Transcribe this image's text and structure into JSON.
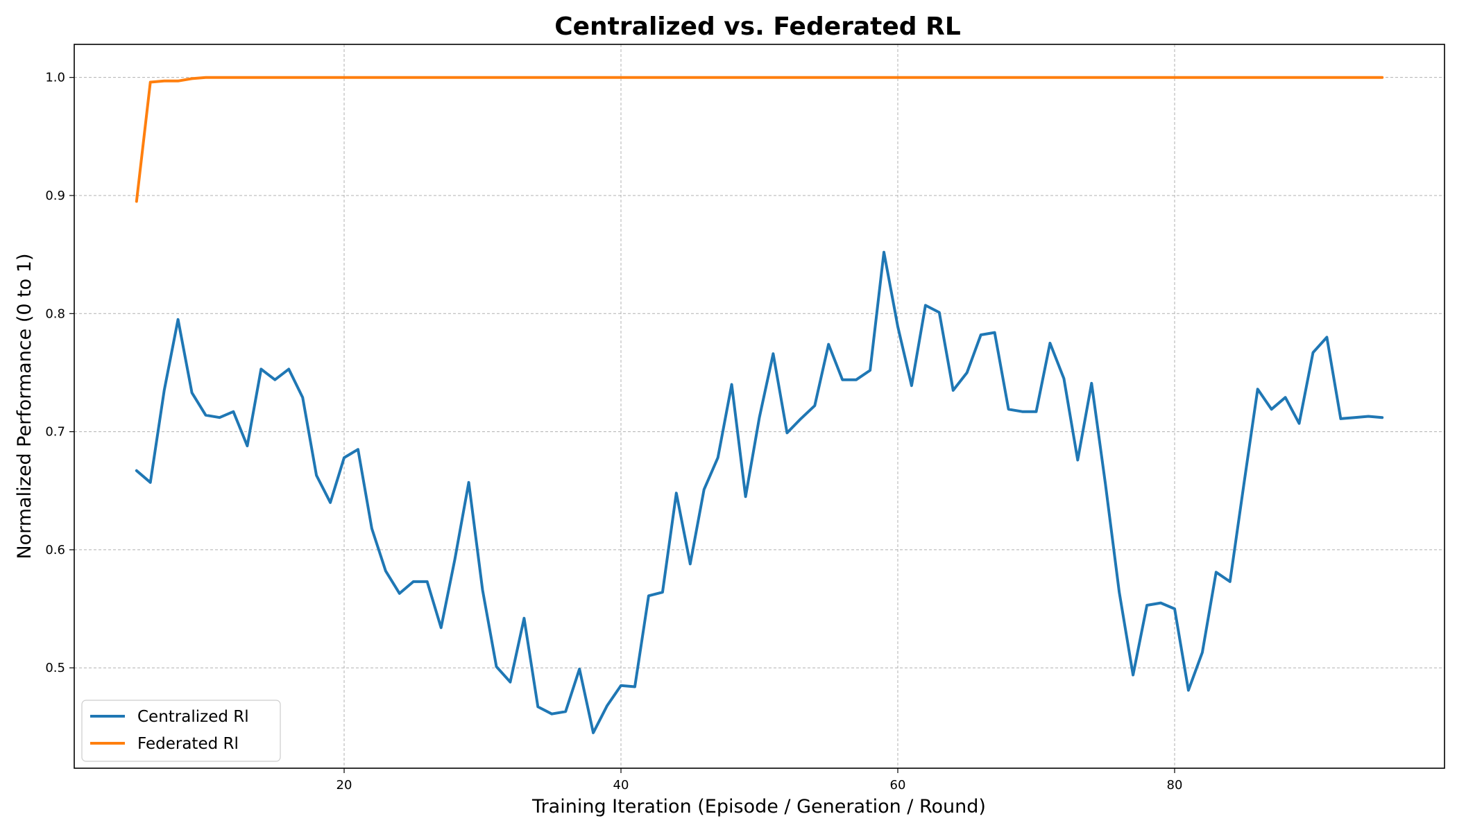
{
  "chart_data": {
    "type": "line",
    "title": "Centralized vs. Federated RL",
    "xlabel": "Training Iteration (Episode / Generation / Round)",
    "ylabel": "Normalized Performance (0 to 1)",
    "xlim": [
      0.5,
      99.5
    ],
    "ylim": [
      0.415,
      1.028
    ],
    "xticks": [
      20,
      40,
      60,
      80
    ],
    "yticks": [
      0.5,
      0.6,
      0.7,
      0.8,
      0.9,
      1.0
    ],
    "xtick_labels": [
      "20",
      "40",
      "60",
      "80"
    ],
    "ytick_labels": [
      "0.5",
      "0.6",
      "0.7",
      "0.8",
      "0.9",
      "1.0"
    ],
    "grid": true,
    "legend_position": "lower-left",
    "x": [
      5,
      6,
      7,
      8,
      9,
      10,
      11,
      12,
      13,
      14,
      15,
      16,
      17,
      18,
      19,
      20,
      21,
      22,
      23,
      24,
      25,
      26,
      27,
      28,
      29,
      30,
      31,
      32,
      33,
      34,
      35,
      36,
      37,
      38,
      39,
      40,
      41,
      42,
      43,
      44,
      45,
      46,
      47,
      48,
      49,
      50,
      51,
      52,
      53,
      54,
      55,
      56,
      57,
      58,
      59,
      60,
      61,
      62,
      63,
      64,
      65,
      66,
      67,
      68,
      69,
      70,
      71,
      72,
      73,
      74,
      75,
      76,
      77,
      78,
      79,
      80,
      81,
      82,
      83,
      84,
      85,
      86,
      87,
      88,
      89,
      90,
      91,
      92,
      93,
      94,
      95
    ],
    "series": [
      {
        "name": "Centralized Rl",
        "color": "#1f77b4",
        "values": [
          0.667,
          0.657,
          0.735,
          0.795,
          0.733,
          0.714,
          0.712,
          0.717,
          0.688,
          0.753,
          0.744,
          0.753,
          0.729,
          0.663,
          0.64,
          0.678,
          0.685,
          0.618,
          0.582,
          0.563,
          0.573,
          0.573,
          0.534,
          0.592,
          0.657,
          0.566,
          0.501,
          0.488,
          0.542,
          0.467,
          0.461,
          0.463,
          0.499,
          0.445,
          0.468,
          0.485,
          0.484,
          0.561,
          0.564,
          0.648,
          0.588,
          0.651,
          0.678,
          0.74,
          0.645,
          0.712,
          0.766,
          0.699,
          0.711,
          0.722,
          0.774,
          0.744,
          0.744,
          0.752,
          0.852,
          0.789,
          0.739,
          0.807,
          0.801,
          0.735,
          0.75,
          0.782,
          0.784,
          0.719,
          0.717,
          0.717,
          0.775,
          0.745,
          0.676,
          0.741,
          0.656,
          0.564,
          0.494,
          0.553,
          0.555,
          0.55,
          0.481,
          0.513,
          0.581,
          0.573,
          0.655,
          0.736,
          0.719,
          0.729,
          0.707,
          0.767,
          0.78,
          0.711,
          0.712,
          0.713,
          0.712
        ]
      },
      {
        "name": "Federated Rl",
        "color": "#ff7f0e",
        "values": [
          0.895,
          0.996,
          0.997,
          0.997,
          0.999,
          1.0,
          1.0,
          1.0,
          1.0,
          1.0,
          1.0,
          1.0,
          1.0,
          1.0,
          1.0,
          1.0,
          1.0,
          1.0,
          1.0,
          1.0,
          1.0,
          1.0,
          1.0,
          1.0,
          1.0,
          1.0,
          1.0,
          1.0,
          1.0,
          1.0,
          1.0,
          1.0,
          1.0,
          1.0,
          1.0,
          1.0,
          1.0,
          1.0,
          1.0,
          1.0,
          1.0,
          1.0,
          1.0,
          1.0,
          1.0,
          1.0,
          1.0,
          1.0,
          1.0,
          1.0,
          1.0,
          1.0,
          1.0,
          1.0,
          1.0,
          1.0,
          1.0,
          1.0,
          1.0,
          1.0,
          1.0,
          1.0,
          1.0,
          1.0,
          1.0,
          1.0,
          1.0,
          1.0,
          1.0,
          1.0,
          1.0,
          1.0,
          1.0,
          1.0,
          1.0,
          1.0,
          1.0,
          1.0,
          1.0,
          1.0,
          1.0,
          1.0,
          1.0,
          1.0,
          1.0,
          1.0,
          1.0,
          1.0,
          1.0,
          1.0,
          1.0
        ]
      }
    ]
  }
}
